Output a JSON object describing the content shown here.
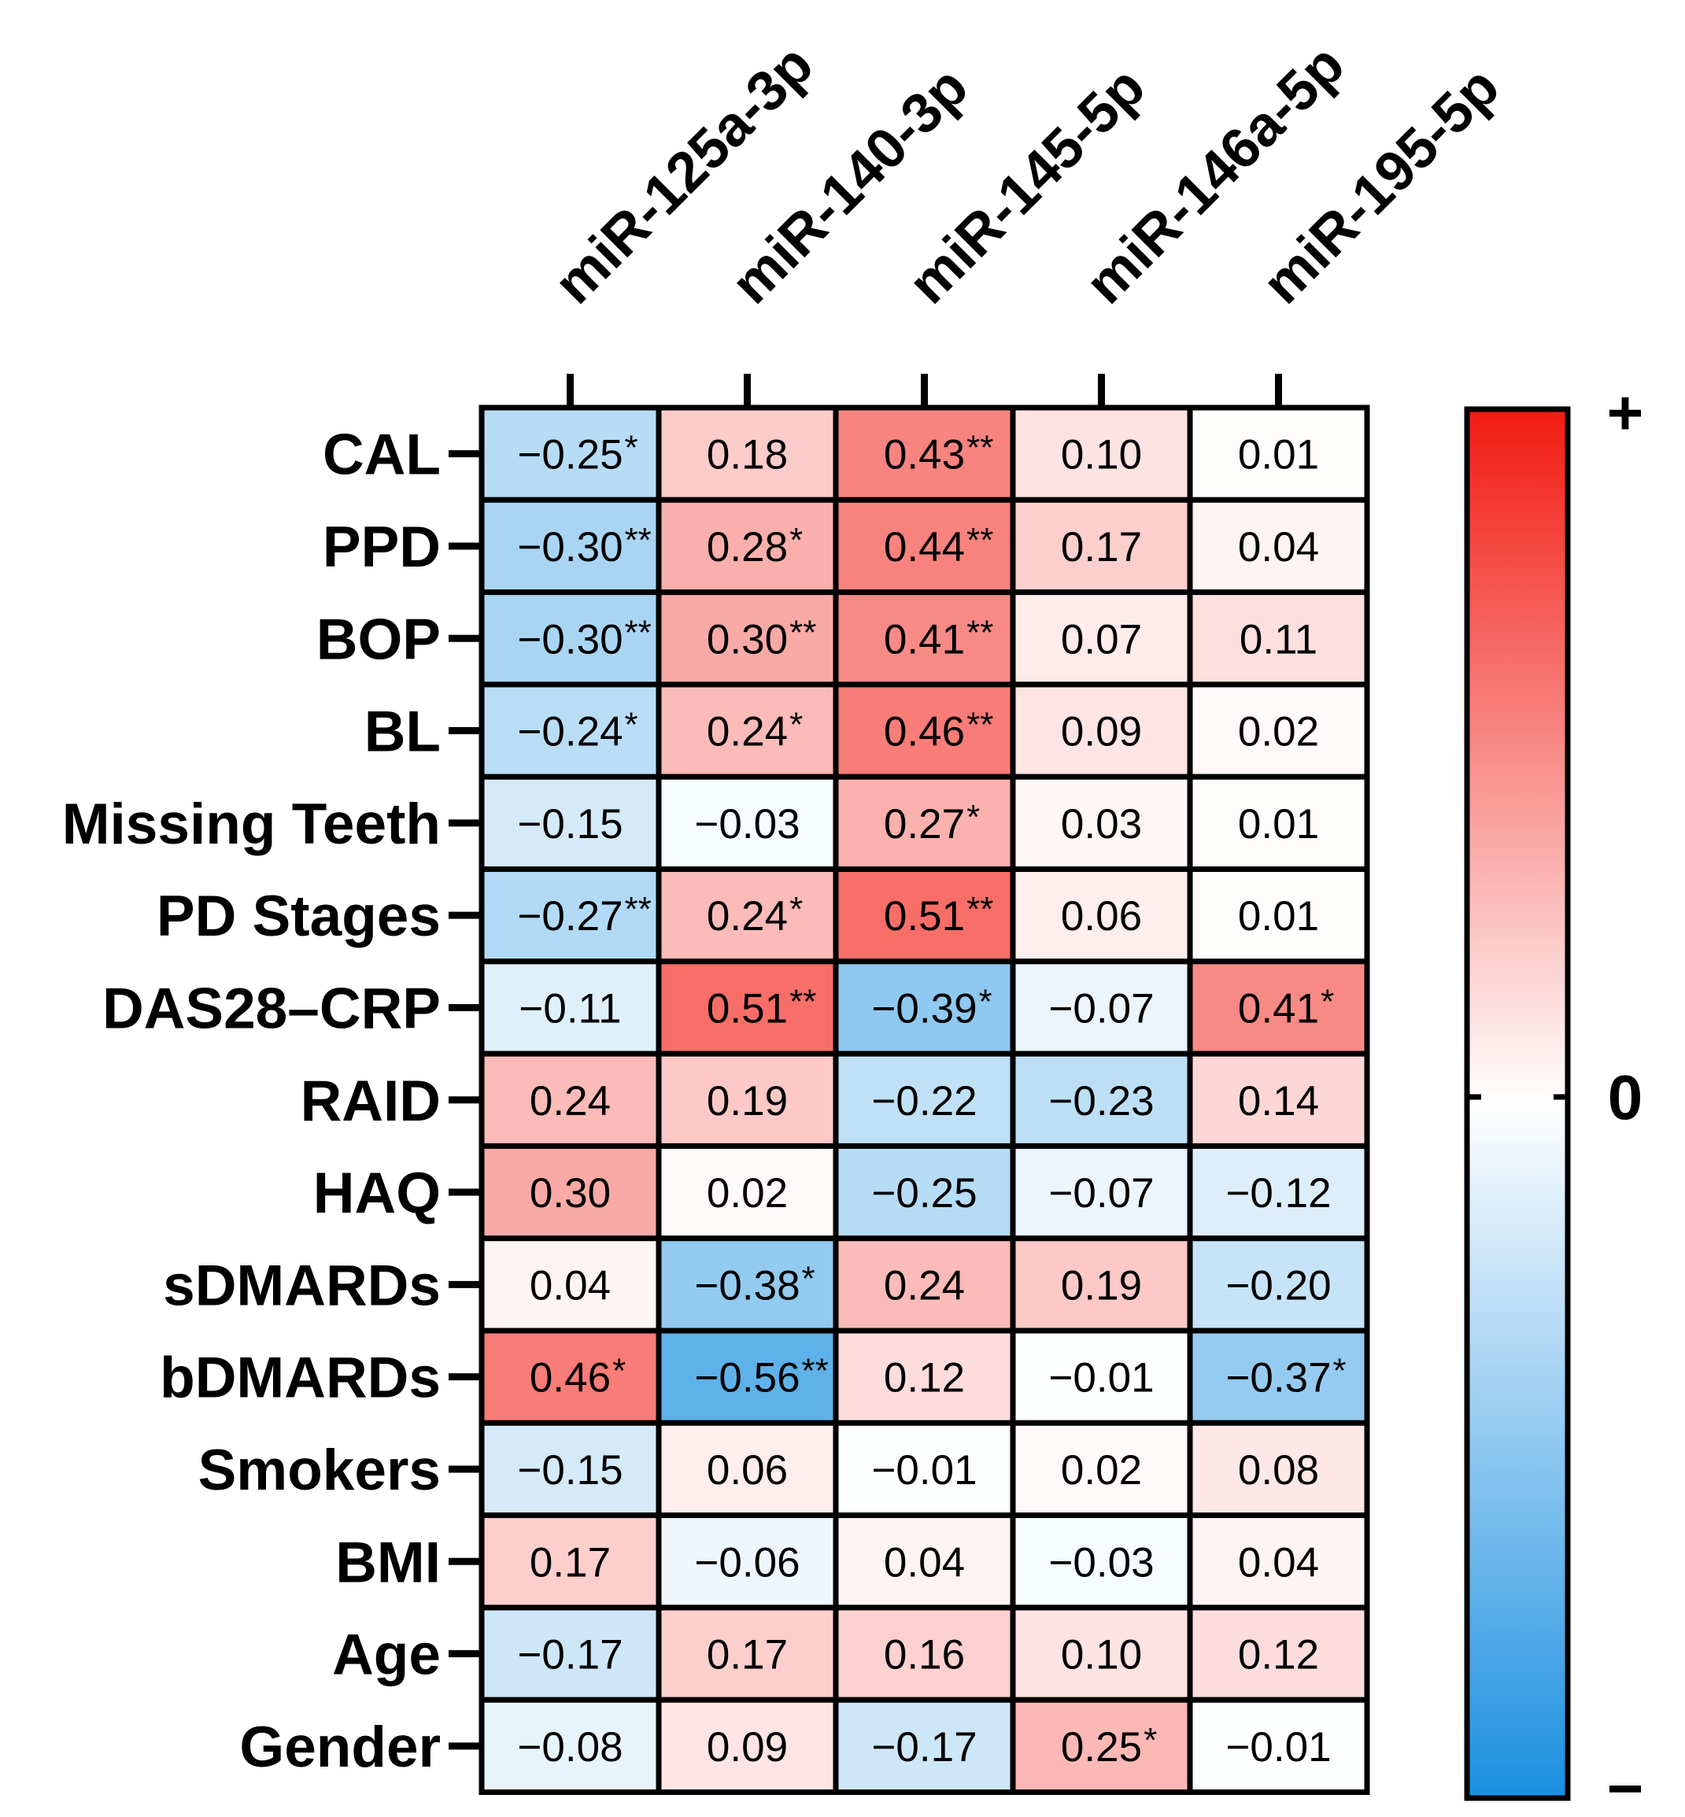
{
  "chart_data": {
    "type": "heatmap",
    "title": "",
    "columns": [
      "miR-125a-3p",
      "miR-140-3p",
      "miR-145-5p",
      "miR-146a-5p",
      "miR-195-5p"
    ],
    "rows": [
      "CAL",
      "PPD",
      "BOP",
      "BL",
      "Missing Teeth",
      "PD Stages",
      "DAS28–CRP",
      "RAID",
      "HAQ",
      "sDMARDs",
      "bDMARDs",
      "Smokers",
      "BMI",
      "Age",
      "Gender"
    ],
    "values": [
      [
        -0.25,
        0.18,
        0.43,
        0.1,
        0.01
      ],
      [
        -0.3,
        0.28,
        0.44,
        0.17,
        0.04
      ],
      [
        -0.3,
        0.3,
        0.41,
        0.07,
        0.11
      ],
      [
        -0.24,
        0.24,
        0.46,
        0.09,
        0.02
      ],
      [
        -0.15,
        -0.03,
        0.27,
        0.03,
        0.01
      ],
      [
        -0.27,
        0.24,
        0.51,
        0.06,
        0.01
      ],
      [
        -0.11,
        0.51,
        -0.39,
        -0.07,
        0.41
      ],
      [
        0.24,
        0.19,
        -0.22,
        -0.23,
        0.14
      ],
      [
        0.3,
        0.02,
        -0.25,
        -0.07,
        -0.12
      ],
      [
        0.04,
        -0.38,
        0.24,
        0.19,
        -0.2
      ],
      [
        0.46,
        -0.56,
        0.12,
        -0.01,
        -0.37
      ],
      [
        -0.15,
        0.06,
        -0.01,
        0.02,
        0.08
      ],
      [
        0.17,
        -0.06,
        0.04,
        -0.03,
        0.04
      ],
      [
        -0.17,
        0.17,
        0.16,
        0.1,
        0.12
      ],
      [
        -0.08,
        0.09,
        -0.17,
        0.25,
        -0.01
      ]
    ],
    "labels": [
      [
        "−0.25",
        "0.18",
        "0.43",
        "0.10",
        "0.01"
      ],
      [
        "−0.30",
        "0.28",
        "0.44",
        "0.17",
        "0.04"
      ],
      [
        "−0.30",
        "0.30",
        "0.41",
        "0.07",
        "0.11"
      ],
      [
        "−0.24",
        "0.24",
        "0.46",
        "0.09",
        "0.02"
      ],
      [
        "−0.15",
        "−0.03",
        "0.27",
        "0.03",
        "0.01"
      ],
      [
        "−0.27",
        "0.24",
        "0.51",
        "0.06",
        "0.01"
      ],
      [
        "−0.11",
        "0.51",
        "−0.39",
        "−0.07",
        "0.41"
      ],
      [
        "0.24",
        "0.19",
        "−0.22",
        "−0.23",
        "0.14"
      ],
      [
        "0.30",
        "0.02",
        "−0.25",
        "−0.07",
        "−0.12"
      ],
      [
        "0.04",
        "−0.38",
        "0.24",
        "0.19",
        "−0.20"
      ],
      [
        "0.46",
        "−0.56",
        "0.12",
        "−0.01",
        "−0.37"
      ],
      [
        "−0.15",
        "0.06",
        "−0.01",
        "0.02",
        "0.08"
      ],
      [
        "0.17",
        "−0.06",
        "0.04",
        "−0.03",
        "0.04"
      ],
      [
        "−0.17",
        "0.17",
        "0.16",
        "0.10",
        "0.12"
      ],
      [
        "−0.08",
        "0.09",
        "−0.17",
        "0.25",
        "−0.01"
      ]
    ],
    "significance": [
      [
        "*",
        "",
        "**",
        "",
        ""
      ],
      [
        "**",
        "*",
        "**",
        "",
        ""
      ],
      [
        "**",
        "**",
        "**",
        "",
        ""
      ],
      [
        "*",
        "*",
        "**",
        "",
        ""
      ],
      [
        "",
        "",
        "*",
        "",
        ""
      ],
      [
        "**",
        "*",
        "**",
        "",
        ""
      ],
      [
        "",
        "**",
        "*",
        "",
        "*"
      ],
      [
        "",
        "",
        "",
        "",
        ""
      ],
      [
        "",
        "",
        "",
        "",
        ""
      ],
      [
        "",
        "*",
        "",
        "",
        ""
      ],
      [
        "*",
        "**",
        "",
        "",
        "*"
      ],
      [
        "",
        "",
        "",
        "",
        ""
      ],
      [
        "",
        "",
        "",
        "",
        ""
      ],
      [
        "",
        "",
        "",
        "",
        ""
      ],
      [
        "",
        "",
        "",
        "*",
        ""
      ]
    ],
    "colorscale": {
      "min": -0.8,
      "max": 0.8,
      "negative_color": "#1a8fe0",
      "zero_color": "#ffffff",
      "positive_color": "#f21b12"
    },
    "legend": {
      "top_label": "+",
      "mid_label": "0",
      "bottom_label": "−",
      "placement": "right"
    }
  }
}
